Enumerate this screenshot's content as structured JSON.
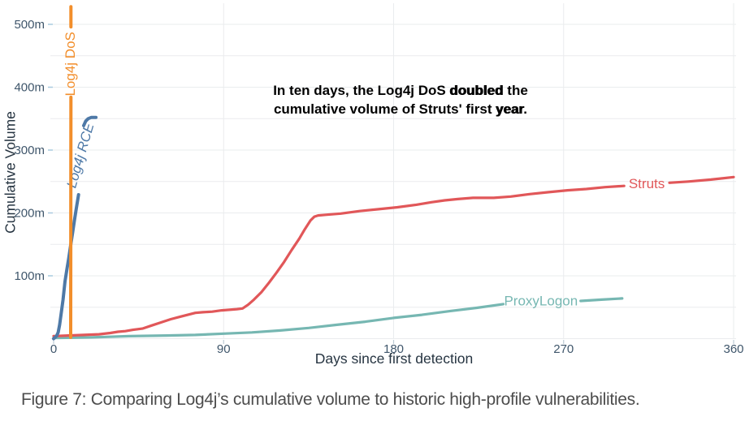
{
  "figure": {
    "caption": "Figure 7: Comparing Log4j’s cumulative volume to historic high-profile vulnerabilities."
  },
  "colors": {
    "grid": "#eaecee",
    "tick_label": "#3f566b",
    "axis_title": "#263441",
    "y_tick_mark": "#a9cadf",
    "x_tick_mark": "#bccad4"
  },
  "chart_data": {
    "type": "line",
    "title": "",
    "xlabel": "Days since first detection",
    "ylabel": "Cumulative Volume",
    "xlim": [
      0,
      360
    ],
    "ylim": [
      0,
      530
    ],
    "grid": "both, every 50m horizontal and every 90 days vertical",
    "legend_position": "direct-labels-on-lines",
    "y_unit": "m",
    "y_grid_values": [
      0,
      50,
      100,
      150,
      200,
      250,
      300,
      350,
      400,
      450,
      500
    ],
    "x_grid_values": [
      90,
      180,
      270,
      360
    ],
    "y_ticks": [
      {
        "value": 100,
        "label": "100m"
      },
      {
        "value": 200,
        "label": "200m"
      },
      {
        "value": 300,
        "label": "300m"
      },
      {
        "value": 400,
        "label": "400m"
      },
      {
        "value": 500,
        "label": "500m"
      }
    ],
    "x_ticks": [
      {
        "value": 0,
        "label": "0"
      },
      {
        "value": 90,
        "label": "90"
      },
      {
        "value": 180,
        "label": "180"
      },
      {
        "value": 270,
        "label": "270"
      },
      {
        "value": 360,
        "label": "360"
      }
    ],
    "annotation": {
      "lines": [
        [
          {
            "t": "In ten days, the Log4j DoS ",
            "strong": false
          },
          {
            "t": "doubled",
            "strong": true
          },
          {
            "t": " the",
            "strong": false
          }
        ],
        [
          {
            "t": "cumulative volume of Struts' first ",
            "strong": false
          },
          {
            "t": "year",
            "strong": true
          },
          {
            "t": ".",
            "strong": false
          }
        ]
      ]
    },
    "series": [
      {
        "name": "ProxyLogon",
        "color": "#76b7b2",
        "width": 3.2,
        "label": {
          "text": "ProxyLogon",
          "day": 258,
          "value": 59,
          "rotation": 0,
          "italic": false
        },
        "segments": [
          [
            [
              0,
              1
            ],
            [
              20,
              2
            ],
            [
              40,
              4
            ],
            [
              60,
              5
            ],
            [
              75,
              6
            ],
            [
              90,
              8
            ],
            [
              105,
              10
            ],
            [
              120,
              13
            ],
            [
              135,
              17
            ],
            [
              150,
              22
            ],
            [
              165,
              27
            ],
            [
              180,
              33
            ],
            [
              195,
              38
            ],
            [
              210,
              44
            ],
            [
              224,
              49
            ],
            [
              238,
              55
            ]
          ],
          [
            [
              279,
              60
            ],
            [
              290,
              62
            ],
            [
              301,
              64
            ]
          ]
        ]
      },
      {
        "name": "Struts",
        "color": "#e15759",
        "width": 3.2,
        "label": {
          "text": "Struts",
          "day": 314,
          "value": 245,
          "rotation": 0,
          "italic": false
        },
        "segments": [
          [
            [
              0,
              4
            ],
            [
              8,
              5
            ],
            [
              16,
              6
            ],
            [
              24,
              7
            ],
            [
              30,
              9
            ],
            [
              34,
              11
            ],
            [
              38,
              12
            ],
            [
              42,
              14
            ],
            [
              47,
              16
            ],
            [
              52,
              21
            ],
            [
              57,
              26
            ],
            [
              62,
              31
            ],
            [
              67,
              35
            ],
            [
              71,
              38
            ],
            [
              75,
              41
            ],
            [
              79,
              42
            ],
            [
              84,
              43
            ],
            [
              89,
              45
            ],
            [
              93,
              46
            ],
            [
              97,
              47
            ],
            [
              100,
              48
            ],
            [
              103,
              54
            ],
            [
              106,
              62
            ],
            [
              110,
              74
            ],
            [
              114,
              89
            ],
            [
              118,
              105
            ],
            [
              122,
              122
            ],
            [
              126,
              141
            ],
            [
              130,
              159
            ],
            [
              133,
              174
            ],
            [
              136,
              188
            ],
            [
              138,
              194
            ],
            [
              140,
              196
            ],
            [
              144,
              197
            ],
            [
              152,
              199
            ],
            [
              162,
              203
            ],
            [
              172,
              206
            ],
            [
              182,
              209
            ],
            [
              192,
              213
            ],
            [
              200,
              217
            ],
            [
              207,
              220
            ],
            [
              214,
              222
            ],
            [
              222,
              224
            ],
            [
              233,
              224
            ],
            [
              242,
              226
            ],
            [
              252,
              230
            ],
            [
              262,
              233
            ],
            [
              272,
              236
            ],
            [
              282,
              238
            ],
            [
              292,
              241
            ],
            [
              302,
              243
            ]
          ],
          [
            [
              326,
              248
            ],
            [
              336,
              250
            ],
            [
              348,
              253
            ],
            [
              360,
              257
            ]
          ]
        ]
      },
      {
        "name": "Log4j RCE",
        "color": "#4e79a7",
        "width": 4,
        "label": {
          "text": "Log4j RCE",
          "day": 14.6,
          "value": 291,
          "rotation": -74,
          "italic": true
        },
        "segments": [
          [
            [
              0,
              0
            ],
            [
              1.5,
              4
            ],
            [
              2.4,
              10
            ],
            [
              3.2,
              22
            ],
            [
              4,
              40
            ],
            [
              5,
              62
            ],
            [
              6,
              91
            ],
            [
              7,
              110
            ],
            [
              8,
              128
            ],
            [
              9,
              148
            ],
            [
              10,
              168
            ],
            [
              11,
              188
            ],
            [
              12,
              207
            ],
            [
              13.2,
              229
            ]
          ],
          [
            [
              15.9,
              339
            ],
            [
              17,
              346
            ],
            [
              18.3,
              350
            ],
            [
              20,
              352
            ],
            [
              22.4,
              352
            ]
          ]
        ]
      },
      {
        "name": "Log4j DoS",
        "color": "#f28e2b",
        "width": 4,
        "label": {
          "text": "Log4j DoS",
          "day": 9.2,
          "value": 437,
          "rotation": -90,
          "italic": false
        },
        "segments": [
          [
            [
              9.05,
              2
            ],
            [
              9.15,
              384
            ]
          ],
          [
            [
              9.15,
              496
            ],
            [
              9.18,
              528
            ]
          ]
        ]
      }
    ]
  }
}
